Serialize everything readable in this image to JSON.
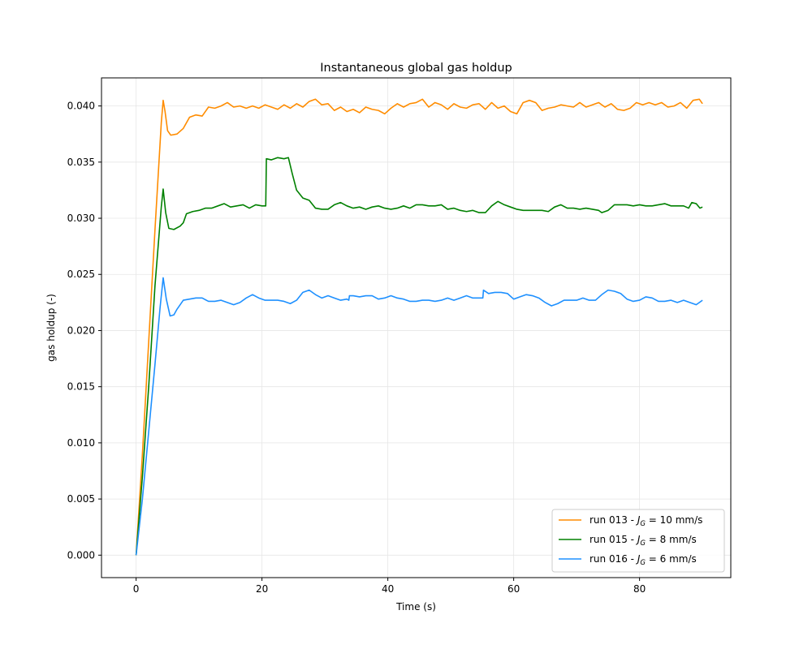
{
  "chart_data": {
    "type": "line",
    "title": "Instantaneous global gas holdup",
    "xlabel": "Time (s)",
    "ylabel": "gas holdup (-)",
    "xlim": [
      -5.5,
      94.5
    ],
    "ylim": [
      -0.002,
      0.0425
    ],
    "xticks": [
      0,
      20,
      40,
      60,
      80
    ],
    "xtick_labels": [
      "0",
      "20",
      "40",
      "60",
      "80"
    ],
    "yticks": [
      0.0,
      0.005,
      0.01,
      0.015,
      0.02,
      0.025,
      0.03,
      0.035,
      0.04
    ],
    "ytick_labels": [
      "0.000",
      "0.005",
      "0.010",
      "0.015",
      "0.020",
      "0.025",
      "0.030",
      "0.035",
      "0.040"
    ],
    "grid": true,
    "legend_position": "bottom-right",
    "series": [
      {
        "name": "run 013",
        "legend_prefix": "run 013 - ",
        "legend_var": "J",
        "legend_sub": "G",
        "legend_suffix": " = 10 mm/s",
        "color": "#ff8c00",
        "points": [
          [
            0,
            0.0
          ],
          [
            1,
            0.009
          ],
          [
            2,
            0.019
          ],
          [
            3,
            0.029
          ],
          [
            4,
            0.0385
          ],
          [
            4.3,
            0.0405
          ],
          [
            4.6,
            0.0395
          ],
          [
            5,
            0.0378
          ],
          [
            5.5,
            0.0374
          ],
          [
            6.5,
            0.0375
          ],
          [
            7.5,
            0.038
          ],
          [
            8.5,
            0.039
          ],
          [
            9.5,
            0.0392
          ],
          [
            10.5,
            0.0391
          ],
          [
            11.5,
            0.0399
          ],
          [
            12.5,
            0.0398
          ],
          [
            13.5,
            0.04
          ],
          [
            14.5,
            0.0403
          ],
          [
            15.5,
            0.0399
          ],
          [
            16.5,
            0.04
          ],
          [
            17.5,
            0.0398
          ],
          [
            18.5,
            0.04
          ],
          [
            19.5,
            0.0398
          ],
          [
            20.5,
            0.0401
          ],
          [
            21.5,
            0.0399
          ],
          [
            22.5,
            0.0397
          ],
          [
            23.5,
            0.0401
          ],
          [
            24.5,
            0.0398
          ],
          [
            25.5,
            0.0402
          ],
          [
            26.5,
            0.0399
          ],
          [
            27.5,
            0.0404
          ],
          [
            28.5,
            0.0406
          ],
          [
            29.5,
            0.0401
          ],
          [
            30.5,
            0.0402
          ],
          [
            31.5,
            0.0396
          ],
          [
            32.5,
            0.0399
          ],
          [
            33.5,
            0.0395
          ],
          [
            34.5,
            0.0397
          ],
          [
            35.5,
            0.0394
          ],
          [
            36.5,
            0.0399
          ],
          [
            37.5,
            0.0397
          ],
          [
            38.5,
            0.0396
          ],
          [
            39.5,
            0.0393
          ],
          [
            40.5,
            0.0398
          ],
          [
            41.5,
            0.0402
          ],
          [
            42.5,
            0.0399
          ],
          [
            43.5,
            0.0402
          ],
          [
            44.5,
            0.0403
          ],
          [
            45.5,
            0.0406
          ],
          [
            46.5,
            0.0399
          ],
          [
            47.5,
            0.0403
          ],
          [
            48.5,
            0.0401
          ],
          [
            49.5,
            0.0397
          ],
          [
            50.5,
            0.0402
          ],
          [
            51.5,
            0.0399
          ],
          [
            52.5,
            0.0398
          ],
          [
            53.5,
            0.0401
          ],
          [
            54.5,
            0.0402
          ],
          [
            55.5,
            0.0397
          ],
          [
            56.5,
            0.0403
          ],
          [
            57.5,
            0.0398
          ],
          [
            58.5,
            0.04
          ],
          [
            59.5,
            0.0395
          ],
          [
            60.5,
            0.0393
          ],
          [
            61.5,
            0.0403
          ],
          [
            62.5,
            0.0405
          ],
          [
            63.5,
            0.0403
          ],
          [
            64.5,
            0.0396
          ],
          [
            65.5,
            0.0398
          ],
          [
            66.5,
            0.0399
          ],
          [
            67.5,
            0.0401
          ],
          [
            68.5,
            0.04
          ],
          [
            69.5,
            0.0399
          ],
          [
            70.5,
            0.0403
          ],
          [
            71.5,
            0.0399
          ],
          [
            72.5,
            0.0401
          ],
          [
            73.5,
            0.0403
          ],
          [
            74.5,
            0.0399
          ],
          [
            75.5,
            0.0402
          ],
          [
            76.5,
            0.0397
          ],
          [
            77.5,
            0.0396
          ],
          [
            78.5,
            0.0398
          ],
          [
            79.5,
            0.0403
          ],
          [
            80.5,
            0.0401
          ],
          [
            81.5,
            0.0403
          ],
          [
            82.5,
            0.0401
          ],
          [
            83.5,
            0.0403
          ],
          [
            84.5,
            0.0399
          ],
          [
            85.5,
            0.04
          ],
          [
            86.5,
            0.0403
          ],
          [
            87.5,
            0.0398
          ],
          [
            88.5,
            0.0405
          ],
          [
            89.5,
            0.0406
          ],
          [
            90,
            0.0402
          ]
        ]
      },
      {
        "name": "run 015",
        "legend_prefix": "run 015 - ",
        "legend_var": "J",
        "legend_sub": "G",
        "legend_suffix": " = 8 mm/s",
        "color": "#008000",
        "points": [
          [
            0,
            0.0
          ],
          [
            1,
            0.007
          ],
          [
            2,
            0.015
          ],
          [
            3,
            0.024
          ],
          [
            4,
            0.031
          ],
          [
            4.3,
            0.0326
          ],
          [
            4.7,
            0.0305
          ],
          [
            5.2,
            0.0291
          ],
          [
            6,
            0.029
          ],
          [
            7,
            0.0293
          ],
          [
            7.5,
            0.0296
          ],
          [
            8,
            0.0304
          ],
          [
            9,
            0.0306
          ],
          [
            10,
            0.0307
          ],
          [
            11,
            0.0309
          ],
          [
            12,
            0.0309
          ],
          [
            13,
            0.0311
          ],
          [
            14,
            0.0313
          ],
          [
            15,
            0.031
          ],
          [
            16,
            0.0311
          ],
          [
            17,
            0.0312
          ],
          [
            18,
            0.0309
          ],
          [
            19,
            0.0312
          ],
          [
            20,
            0.0311
          ],
          [
            20.6,
            0.0311
          ],
          [
            20.7,
            0.0353
          ],
          [
            21.5,
            0.0352
          ],
          [
            22.5,
            0.0354
          ],
          [
            23.5,
            0.0353
          ],
          [
            24.2,
            0.0354
          ],
          [
            24.8,
            0.034
          ],
          [
            25.5,
            0.0325
          ],
          [
            26.5,
            0.0318
          ],
          [
            27.5,
            0.0316
          ],
          [
            28.5,
            0.0309
          ],
          [
            29.5,
            0.0308
          ],
          [
            30.5,
            0.0308
          ],
          [
            31.5,
            0.0312
          ],
          [
            32.5,
            0.0314
          ],
          [
            33.5,
            0.0311
          ],
          [
            34.5,
            0.0309
          ],
          [
            35.5,
            0.031
          ],
          [
            36.5,
            0.0308
          ],
          [
            37.5,
            0.031
          ],
          [
            38.5,
            0.0311
          ],
          [
            39.5,
            0.0309
          ],
          [
            40.5,
            0.0308
          ],
          [
            41.5,
            0.0309
          ],
          [
            42.5,
            0.0311
          ],
          [
            43.5,
            0.0309
          ],
          [
            44.5,
            0.0312
          ],
          [
            45.5,
            0.0312
          ],
          [
            46.5,
            0.0311
          ],
          [
            47.5,
            0.0311
          ],
          [
            48.5,
            0.0312
          ],
          [
            49.5,
            0.0308
          ],
          [
            50.5,
            0.0309
          ],
          [
            51.5,
            0.0307
          ],
          [
            52.5,
            0.0306
          ],
          [
            53.5,
            0.0307
          ],
          [
            54.5,
            0.0305
          ],
          [
            55.5,
            0.0305
          ],
          [
            56.5,
            0.0311
          ],
          [
            57.5,
            0.0315
          ],
          [
            58.5,
            0.0312
          ],
          [
            59.5,
            0.031
          ],
          [
            60.5,
            0.0308
          ],
          [
            61.5,
            0.0307
          ],
          [
            62.5,
            0.0307
          ],
          [
            63.5,
            0.0307
          ],
          [
            64.5,
            0.0307
          ],
          [
            65.5,
            0.0306
          ],
          [
            66.5,
            0.031
          ],
          [
            67.5,
            0.0312
          ],
          [
            68.5,
            0.0309
          ],
          [
            69.5,
            0.0309
          ],
          [
            70.5,
            0.0308
          ],
          [
            71.5,
            0.0309
          ],
          [
            72.5,
            0.0308
          ],
          [
            73.5,
            0.0307
          ],
          [
            74,
            0.0305
          ],
          [
            75,
            0.0307
          ],
          [
            76,
            0.0312
          ],
          [
            77,
            0.0312
          ],
          [
            78,
            0.0312
          ],
          [
            79,
            0.0311
          ],
          [
            80,
            0.0312
          ],
          [
            81,
            0.0311
          ],
          [
            82,
            0.0311
          ],
          [
            83,
            0.0312
          ],
          [
            84,
            0.0313
          ],
          [
            85,
            0.0311
          ],
          [
            86,
            0.0311
          ],
          [
            87,
            0.0311
          ],
          [
            87.8,
            0.0309
          ],
          [
            88.3,
            0.0314
          ],
          [
            89,
            0.0313
          ],
          [
            89.6,
            0.0309
          ],
          [
            90,
            0.031
          ]
        ]
      },
      {
        "name": "run 016",
        "legend_prefix": "run 016 - ",
        "legend_var": "J",
        "legend_sub": "G",
        "legend_suffix": " = 6 mm/s",
        "color": "#1e90ff",
        "points": [
          [
            0,
            0.0
          ],
          [
            1,
            0.005
          ],
          [
            2,
            0.011
          ],
          [
            3,
            0.017
          ],
          [
            3.8,
            0.022
          ],
          [
            4.3,
            0.0247
          ],
          [
            4.8,
            0.0228
          ],
          [
            5.4,
            0.0213
          ],
          [
            6,
            0.0214
          ],
          [
            6.5,
            0.0219
          ],
          [
            7.5,
            0.0227
          ],
          [
            8.5,
            0.0228
          ],
          [
            9.5,
            0.0229
          ],
          [
            10.5,
            0.0229
          ],
          [
            11.5,
            0.0226
          ],
          [
            12.5,
            0.0226
          ],
          [
            13.5,
            0.0227
          ],
          [
            14.5,
            0.0225
          ],
          [
            15.5,
            0.0223
          ],
          [
            16.5,
            0.0225
          ],
          [
            17.5,
            0.0229
          ],
          [
            18.5,
            0.0232
          ],
          [
            19.5,
            0.0229
          ],
          [
            20.5,
            0.0227
          ],
          [
            21.5,
            0.0227
          ],
          [
            22.5,
            0.0227
          ],
          [
            23.5,
            0.0226
          ],
          [
            24.5,
            0.0224
          ],
          [
            25.5,
            0.0227
          ],
          [
            26.5,
            0.0234
          ],
          [
            27.5,
            0.0236
          ],
          [
            28.5,
            0.0232
          ],
          [
            29.5,
            0.0229
          ],
          [
            30.5,
            0.0231
          ],
          [
            31.5,
            0.0229
          ],
          [
            32.5,
            0.0227
          ],
          [
            33.5,
            0.0228
          ],
          [
            33.8,
            0.0227
          ],
          [
            33.9,
            0.0231
          ],
          [
            34.5,
            0.0231
          ],
          [
            35.5,
            0.023
          ],
          [
            36.5,
            0.0231
          ],
          [
            37.5,
            0.0231
          ],
          [
            38.5,
            0.0228
          ],
          [
            39.5,
            0.0229
          ],
          [
            40.5,
            0.0231
          ],
          [
            41.5,
            0.0229
          ],
          [
            42.5,
            0.0228
          ],
          [
            43.5,
            0.0226
          ],
          [
            44.5,
            0.0226
          ],
          [
            45.5,
            0.0227
          ],
          [
            46.5,
            0.0227
          ],
          [
            47.5,
            0.0226
          ],
          [
            48.5,
            0.0227
          ],
          [
            49.5,
            0.0229
          ],
          [
            50.5,
            0.0227
          ],
          [
            51.5,
            0.0229
          ],
          [
            52.5,
            0.0231
          ],
          [
            53.5,
            0.0229
          ],
          [
            54.5,
            0.0229
          ],
          [
            55.1,
            0.0229
          ],
          [
            55.2,
            0.0236
          ],
          [
            56,
            0.0233
          ],
          [
            57,
            0.0234
          ],
          [
            58,
            0.0234
          ],
          [
            59,
            0.0233
          ],
          [
            60,
            0.0228
          ],
          [
            61,
            0.023
          ],
          [
            62,
            0.0232
          ],
          [
            63,
            0.0231
          ],
          [
            64,
            0.0229
          ],
          [
            65,
            0.0225
          ],
          [
            66,
            0.0222
          ],
          [
            67,
            0.0224
          ],
          [
            68,
            0.0227
          ],
          [
            69,
            0.0227
          ],
          [
            70,
            0.0227
          ],
          [
            71,
            0.0229
          ],
          [
            72,
            0.0227
          ],
          [
            73,
            0.0227
          ],
          [
            74,
            0.0232
          ],
          [
            75,
            0.0236
          ],
          [
            76,
            0.0235
          ],
          [
            77,
            0.0233
          ],
          [
            78,
            0.0228
          ],
          [
            79,
            0.0226
          ],
          [
            80,
            0.0227
          ],
          [
            81,
            0.023
          ],
          [
            82,
            0.0229
          ],
          [
            83,
            0.0226
          ],
          [
            84,
            0.0226
          ],
          [
            85,
            0.0227
          ],
          [
            86,
            0.0225
          ],
          [
            87,
            0.0227
          ],
          [
            88,
            0.0225
          ],
          [
            89,
            0.0223
          ],
          [
            90,
            0.0227
          ]
        ]
      }
    ]
  }
}
